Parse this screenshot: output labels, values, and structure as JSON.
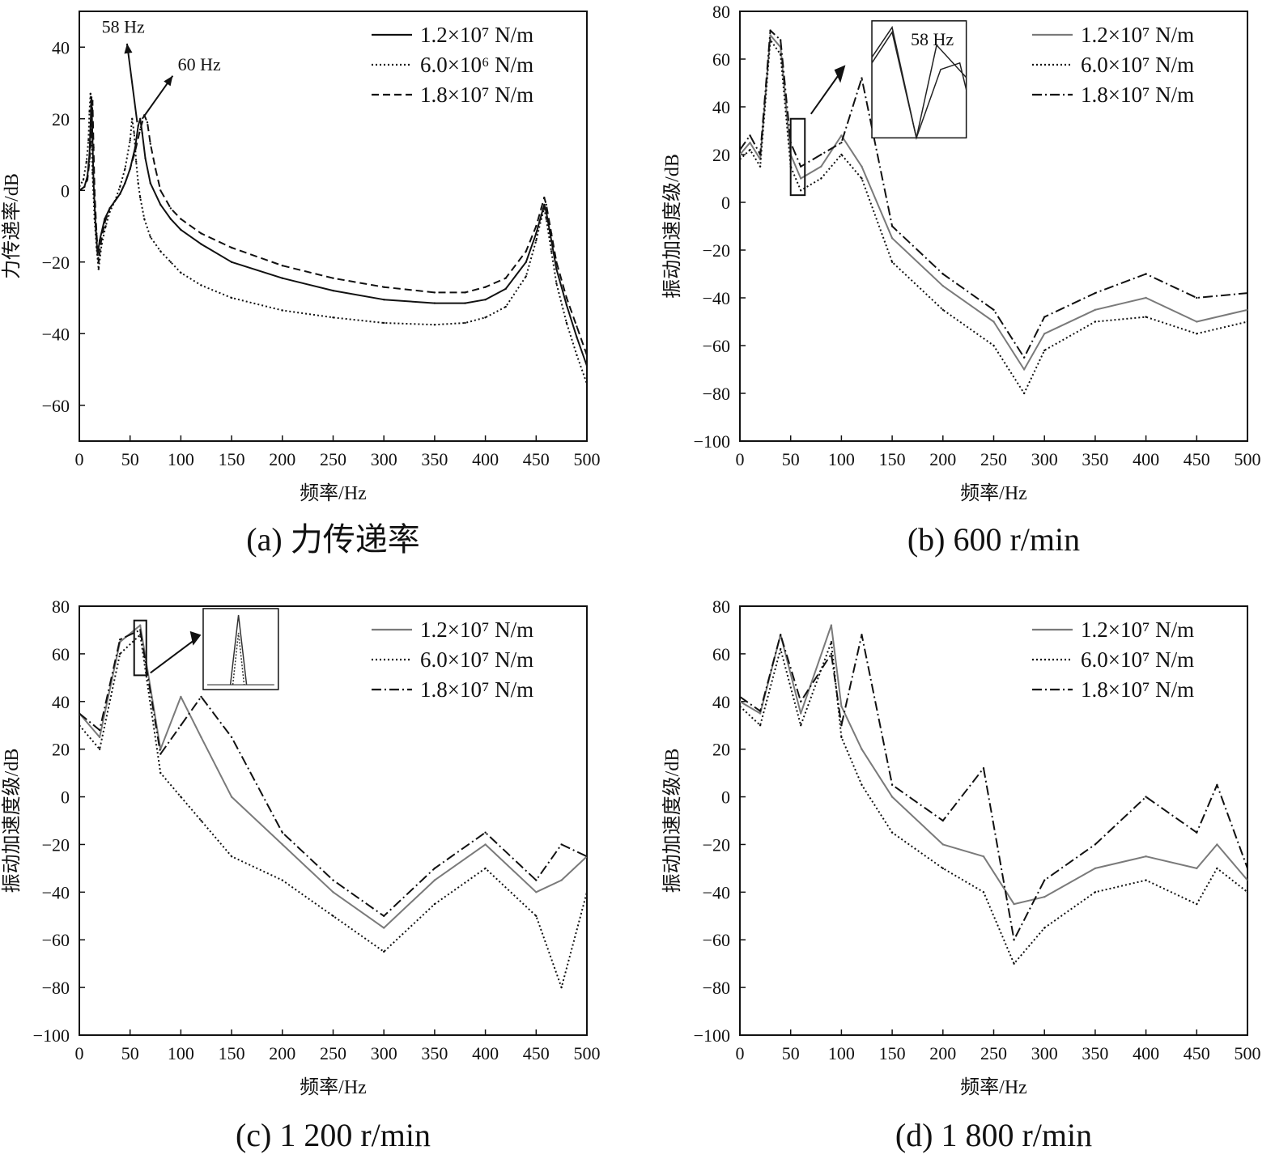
{
  "chart_data": [
    {
      "id": "a",
      "type": "line",
      "caption": "(a) 力传递率",
      "xlabel": "频率/Hz",
      "ylabel": "力传递率/dB",
      "xlim": [
        0,
        500
      ],
      "ylim": [
        -70,
        50
      ],
      "xticks": [
        0,
        50,
        100,
        150,
        200,
        250,
        300,
        350,
        400,
        450,
        500
      ],
      "yticks": [
        -60,
        -40,
        -20,
        0,
        20,
        40
      ],
      "legend_position": "top-right",
      "annotations": [
        "58 Hz",
        "60 Hz"
      ],
      "series": [
        {
          "name": "1.2×10⁷ N/m",
          "style": "solid",
          "color": "#111111",
          "x": [
            0,
            5,
            8,
            10,
            11,
            12,
            13,
            14,
            16,
            18,
            20,
            25,
            30,
            35,
            40,
            45,
            50,
            55,
            58,
            60,
            62,
            65,
            70,
            80,
            90,
            100,
            120,
            150,
            200,
            250,
            300,
            350,
            380,
            400,
            420,
            440,
            450,
            455,
            458,
            460,
            465,
            470,
            480,
            490,
            500
          ],
          "y": [
            0,
            1,
            4,
            10,
            18,
            26,
            14,
            2,
            -10,
            -18,
            -14,
            -8,
            -5,
            -3,
            -1,
            2,
            6,
            12,
            18,
            20,
            16,
            9,
            2,
            -4,
            -8,
            -11,
            -15,
            -20,
            -24.5,
            -28,
            -30.5,
            -31.5,
            -31.5,
            -30.5,
            -27.5,
            -20,
            -12,
            -7,
            -4,
            -6,
            -14,
            -22,
            -32,
            -41,
            -49
          ]
        },
        {
          "name": "6.0×10⁶ N/m",
          "style": "dotted",
          "color": "#111111",
          "x": [
            0,
            4,
            7,
            9,
            10,
            11,
            12,
            13,
            15,
            17,
            19,
            22,
            26,
            30,
            35,
            40,
            45,
            50,
            52,
            54,
            56,
            58,
            60,
            64,
            70,
            80,
            90,
            100,
            120,
            150,
            200,
            250,
            300,
            350,
            380,
            400,
            420,
            440,
            450,
            455,
            458,
            460,
            465,
            470,
            480,
            490,
            500
          ],
          "y": [
            1,
            3,
            8,
            14,
            22,
            27,
            18,
            5,
            -8,
            -16,
            -22,
            -15,
            -10,
            -6,
            -3,
            1,
            6,
            14,
            20,
            16,
            8,
            2,
            -2,
            -8,
            -13,
            -17,
            -20,
            -23,
            -26.5,
            -30,
            -33.5,
            -35.5,
            -37,
            -37.5,
            -37,
            -35.5,
            -32.5,
            -24,
            -14,
            -8,
            -5,
            -8,
            -17,
            -26,
            -37,
            -46,
            -54
          ]
        },
        {
          "name": "1.8×10⁷ N/m",
          "style": "dashed",
          "color": "#111111",
          "x": [
            0,
            5,
            8,
            10,
            12,
            13,
            14,
            15,
            17,
            19,
            21,
            25,
            30,
            35,
            40,
            45,
            50,
            55,
            60,
            64,
            67,
            70,
            75,
            80,
            90,
            100,
            120,
            150,
            200,
            250,
            300,
            350,
            380,
            400,
            420,
            440,
            450,
            455,
            458,
            460,
            465,
            470,
            480,
            490,
            500
          ],
          "y": [
            0,
            1,
            3,
            8,
            16,
            25,
            12,
            0,
            -12,
            -20,
            -15,
            -9,
            -5,
            -3,
            -1,
            2,
            6,
            11,
            17,
            21,
            19,
            13,
            6,
            0,
            -5,
            -8,
            -12,
            -16,
            -21,
            -24.5,
            -27,
            -28.5,
            -28.5,
            -27,
            -24.5,
            -17,
            -10,
            -5,
            -2,
            -4,
            -12,
            -20,
            -30,
            -38,
            -46
          ]
        }
      ]
    },
    {
      "id": "b",
      "type": "line",
      "caption": "(b) 600 r/min",
      "xlabel": "频率/Hz",
      "ylabel": "振动加速度级/dB",
      "xlim": [
        0,
        500
      ],
      "ylim": [
        -100,
        80
      ],
      "xticks": [
        0,
        50,
        100,
        150,
        200,
        250,
        300,
        350,
        400,
        450,
        500
      ],
      "yticks": [
        -100,
        -80,
        -60,
        -40,
        -20,
        0,
        20,
        40,
        60,
        80
      ],
      "legend_position": "top-right",
      "inset_label": "58 Hz",
      "peaks": [
        [
          30,
          72
        ],
        [
          40,
          68
        ],
        [
          100,
          28
        ],
        [
          120,
          52
        ]
      ],
      "series": [
        {
          "name": "1.2×10⁷ N/m",
          "style": "solid",
          "color": "#7a7a7a",
          "x": [
            0,
            10,
            20,
            30,
            40,
            50,
            60,
            80,
            100,
            120,
            150,
            200,
            250,
            280,
            300,
            350,
            400,
            450,
            500
          ],
          "y": [
            20,
            25,
            18,
            70,
            65,
            20,
            10,
            15,
            28,
            15,
            -15,
            -35,
            -50,
            -70,
            -55,
            -45,
            -40,
            -50,
            -45
          ]
        },
        {
          "name": "6.0×10⁷ N/m",
          "style": "dotted",
          "color": "#111111",
          "x": [
            0,
            10,
            20,
            30,
            40,
            50,
            60,
            80,
            100,
            120,
            150,
            200,
            250,
            280,
            300,
            350,
            400,
            450,
            500
          ],
          "y": [
            18,
            22,
            15,
            68,
            62,
            15,
            5,
            10,
            20,
            10,
            -25,
            -45,
            -60,
            -80,
            -62,
            -50,
            -48,
            -55,
            -50
          ]
        },
        {
          "name": "1.8×10⁷ N/m",
          "style": "dashdot",
          "color": "#111111",
          "x": [
            0,
            10,
            20,
            30,
            40,
            50,
            60,
            80,
            100,
            120,
            150,
            200,
            250,
            280,
            300,
            350,
            400,
            450,
            500
          ],
          "y": [
            22,
            28,
            20,
            72,
            68,
            25,
            15,
            20,
            25,
            52,
            -10,
            -30,
            -45,
            -65,
            -48,
            -38,
            -30,
            -40,
            -38
          ]
        }
      ]
    },
    {
      "id": "c",
      "type": "line",
      "caption": "(c) 1 200 r/min",
      "xlabel": "频率/Hz",
      "ylabel": "振动加速度级/dB",
      "xlim": [
        0,
        500
      ],
      "ylim": [
        -100,
        80
      ],
      "xticks": [
        0,
        50,
        100,
        150,
        200,
        250,
        300,
        350,
        400,
        450,
        500
      ],
      "yticks": [
        -100,
        -80,
        -60,
        -40,
        -20,
        0,
        20,
        40,
        60,
        80
      ],
      "legend_position": "top-right",
      "peaks": [
        [
          40,
          66
        ],
        [
          60,
          72
        ],
        [
          100,
          42
        ],
        [
          120,
          42
        ],
        [
          160,
          28
        ]
      ],
      "series": [
        {
          "name": "1.2×10⁷ N/m",
          "style": "solid",
          "color": "#7a7a7a",
          "x": [
            0,
            20,
            40,
            60,
            80,
            100,
            120,
            150,
            200,
            250,
            300,
            350,
            400,
            450,
            475,
            500
          ],
          "y": [
            35,
            25,
            65,
            72,
            20,
            42,
            25,
            0,
            -20,
            -40,
            -55,
            -35,
            -20,
            -40,
            -35,
            -25
          ]
        },
        {
          "name": "6.0×10⁷ N/m",
          "style": "dotted",
          "color": "#111111",
          "x": [
            0,
            20,
            40,
            60,
            80,
            100,
            120,
            150,
            200,
            250,
            300,
            350,
            400,
            450,
            475,
            500
          ],
          "y": [
            30,
            20,
            60,
            68,
            10,
            0,
            -10,
            -25,
            -35,
            -50,
            -65,
            -45,
            -30,
            -50,
            -80,
            -40
          ]
        },
        {
          "name": "1.8×10⁷ N/m",
          "style": "dashdot",
          "color": "#111111",
          "x": [
            0,
            20,
            40,
            60,
            80,
            100,
            120,
            150,
            200,
            250,
            300,
            350,
            400,
            450,
            475,
            500
          ],
          "y": [
            35,
            28,
            66,
            70,
            18,
            30,
            42,
            25,
            -15,
            -35,
            -50,
            -30,
            -15,
            -35,
            -20,
            -25
          ]
        }
      ]
    },
    {
      "id": "d",
      "type": "line",
      "caption": "(d) 1 800 r/min",
      "xlabel": "频率/Hz",
      "ylabel": "振动加速度级/dB",
      "xlim": [
        0,
        500
      ],
      "ylim": [
        -100,
        80
      ],
      "xticks": [
        0,
        50,
        100,
        150,
        200,
        250,
        300,
        350,
        400,
        450,
        500
      ],
      "yticks": [
        -100,
        -80,
        -60,
        -40,
        -20,
        0,
        20,
        40,
        60,
        80
      ],
      "legend_position": "top-right",
      "peaks": [
        [
          40,
          68
        ],
        [
          90,
          72
        ],
        [
          120,
          68
        ],
        [
          240,
          12
        ]
      ],
      "series": [
        {
          "name": "1.2×10⁷ N/m",
          "style": "solid",
          "color": "#7a7a7a",
          "x": [
            0,
            20,
            40,
            60,
            90,
            100,
            120,
            150,
            200,
            240,
            270,
            300,
            350,
            400,
            450,
            470,
            500
          ],
          "y": [
            40,
            35,
            68,
            35,
            72,
            38,
            20,
            0,
            -20,
            -25,
            -45,
            -42,
            -30,
            -25,
            -30,
            -20,
            -35
          ]
        },
        {
          "name": "6.0×10⁷ N/m",
          "style": "dotted",
          "color": "#111111",
          "x": [
            0,
            20,
            40,
            60,
            90,
            100,
            120,
            150,
            200,
            240,
            270,
            300,
            350,
            400,
            450,
            470,
            500
          ],
          "y": [
            38,
            30,
            62,
            30,
            65,
            25,
            5,
            -15,
            -30,
            -40,
            -70,
            -55,
            -40,
            -35,
            -45,
            -30,
            -40
          ]
        },
        {
          "name": "1.8×10⁷ N/m",
          "style": "dashdot",
          "color": "#111111",
          "x": [
            0,
            20,
            40,
            60,
            90,
            100,
            120,
            150,
            200,
            240,
            270,
            300,
            350,
            400,
            450,
            470,
            500
          ],
          "y": [
            42,
            36,
            68,
            40,
            60,
            30,
            68,
            5,
            -10,
            12,
            -60,
            -35,
            -20,
            0,
            -15,
            5,
            -30
          ]
        }
      ]
    }
  ]
}
